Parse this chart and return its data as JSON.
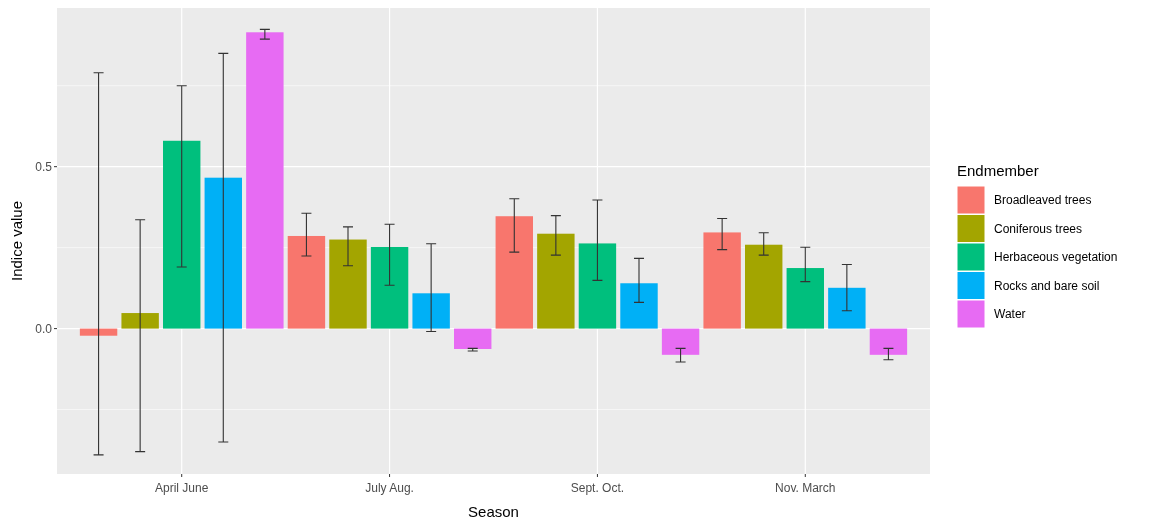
{
  "chart_data": {
    "type": "bar",
    "xlabel": "Season",
    "ylabel": "Indice value",
    "legend_title": "Endmember",
    "legend": "right",
    "grid": true,
    "categories": [
      "April June",
      "July Aug.",
      "Sept. Oct.",
      "Nov. March"
    ],
    "ylim": [
      -0.449,
      0.99
    ],
    "yticks": [
      {
        "value": 0,
        "label": "0.0"
      },
      {
        "value": 0.5,
        "label": "0.5"
      }
    ],
    "series": [
      {
        "name": "Broadleaved trees",
        "color": "#f8766d",
        "values": [
          -0.022,
          0.286,
          0.347,
          0.297
        ],
        "errors": [
          [
            -0.39,
            0.79
          ],
          [
            0.224,
            0.356
          ],
          [
            0.236,
            0.401
          ],
          [
            0.244,
            0.34
          ]
        ]
      },
      {
        "name": "Coniferous trees",
        "color": "#a3a500",
        "values": [
          0.048,
          0.275,
          0.293,
          0.259
        ],
        "errors": [
          [
            -0.38,
            0.336
          ],
          [
            0.194,
            0.314
          ],
          [
            0.227,
            0.349
          ],
          [
            0.227,
            0.296
          ]
        ]
      },
      {
        "name": "Herbaceous vegetation",
        "color": "#00bf7d",
        "values": [
          0.58,
          0.252,
          0.263,
          0.187
        ],
        "errors": [
          [
            0.19,
            0.75
          ],
          [
            0.134,
            0.322
          ],
          [
            0.149,
            0.397
          ],
          [
            0.145,
            0.251
          ]
        ]
      },
      {
        "name": "Rocks and bare soil",
        "color": "#00b0f6",
        "values": [
          0.466,
          0.109,
          0.14,
          0.126
        ],
        "errors": [
          [
            -0.35,
            0.85
          ],
          [
            -0.009,
            0.262
          ],
          [
            0.081,
            0.217
          ],
          [
            0.055,
            0.198
          ]
        ]
      },
      {
        "name": "Water",
        "color": "#e76bf3",
        "values": [
          0.915,
          -0.063,
          -0.081,
          -0.081
        ],
        "errors": [
          [
            0.894,
            0.924
          ],
          [
            -0.069,
            -0.061
          ],
          [
            -0.103,
            -0.061
          ],
          [
            -0.096,
            -0.061
          ]
        ]
      }
    ]
  }
}
